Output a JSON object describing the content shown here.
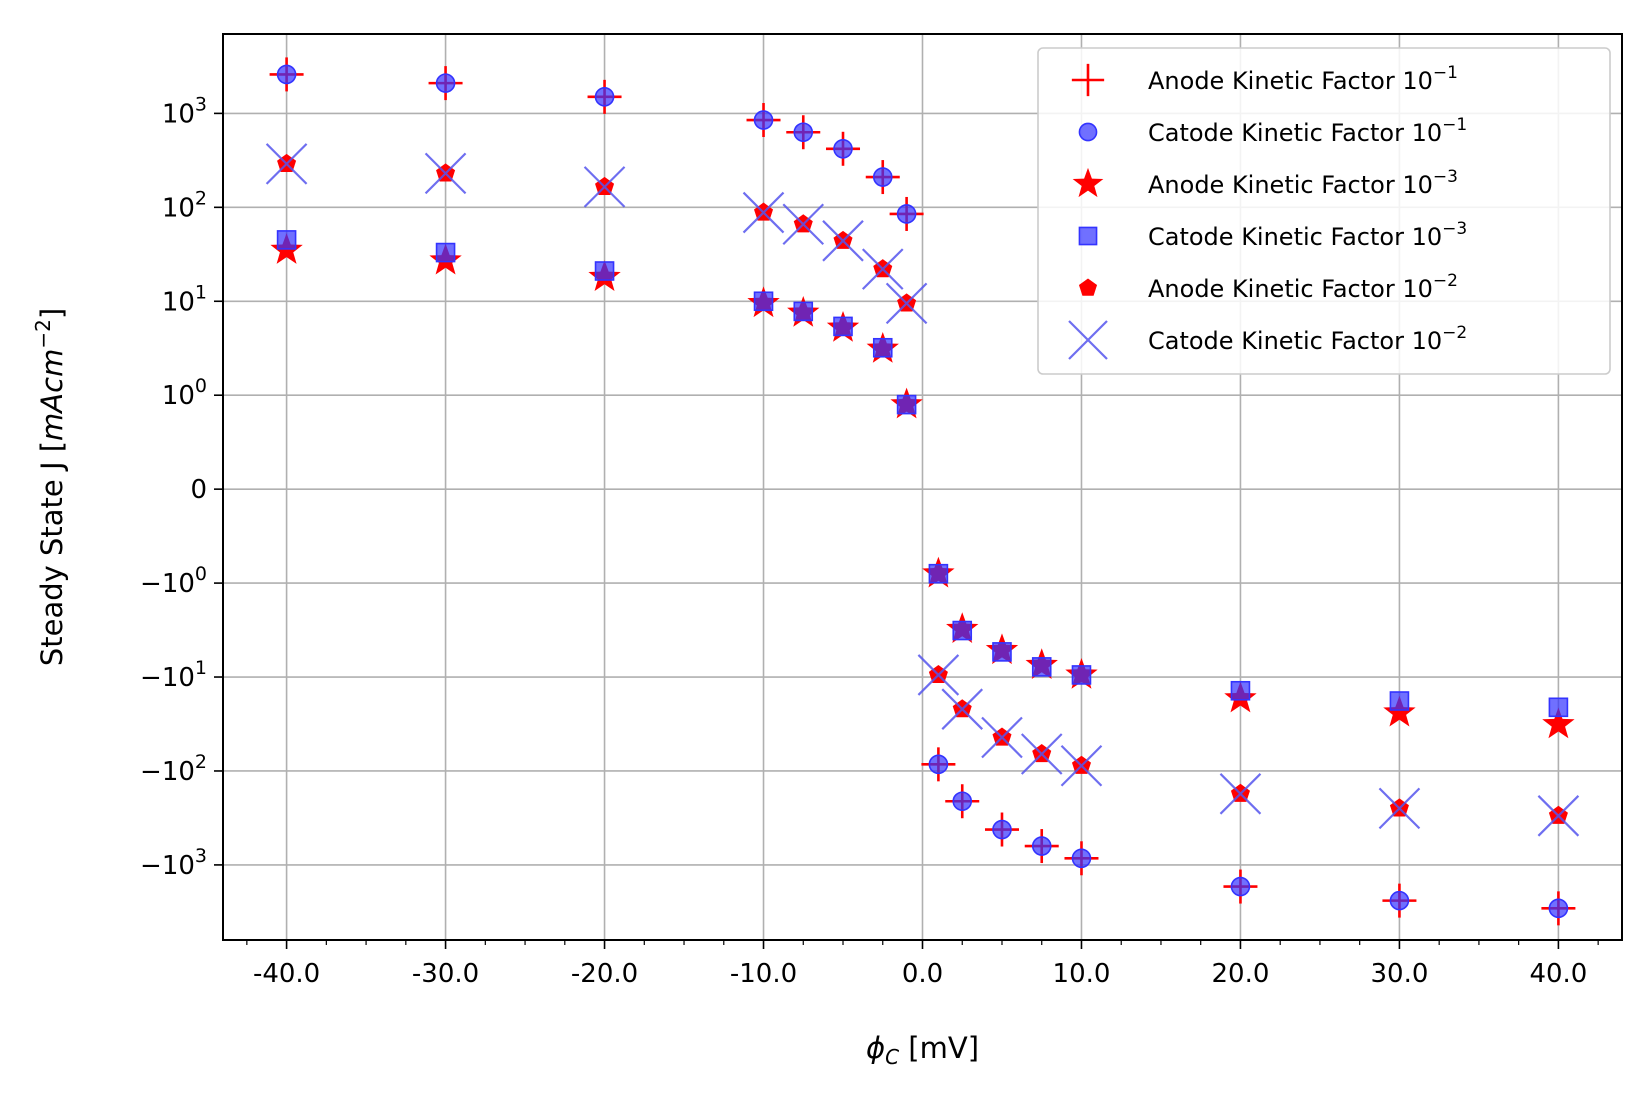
{
  "chart_data": {
    "type": "scatter",
    "title": "",
    "xlabel": {
      "sym": "ϕ",
      "sub": "C",
      "unit": " [mV]"
    },
    "ylabel": {
      "prefix": "Steady State J [",
      "italic": "mAcm",
      "sup": "−2",
      "suffix": "]"
    },
    "xlim": [
      -44,
      44
    ],
    "yscale": "symlog",
    "ylim": [
      -6300,
      7000
    ],
    "x_ticks": [
      {
        "value": -40,
        "label": "-40.0"
      },
      {
        "value": -30,
        "label": "-30.0"
      },
      {
        "value": -20,
        "label": "-20.0"
      },
      {
        "value": -10,
        "label": "-10.0"
      },
      {
        "value": 0,
        "label": "0.0"
      },
      {
        "value": 10,
        "label": "10.0"
      },
      {
        "value": 20,
        "label": "20.0"
      },
      {
        "value": 30,
        "label": "30.0"
      },
      {
        "value": 40,
        "label": "40.0"
      }
    ],
    "y_ticks": [
      {
        "value": 1000,
        "label_base": "10",
        "label_exp": "3",
        "sign": ""
      },
      {
        "value": 100,
        "label_base": "10",
        "label_exp": "2",
        "sign": ""
      },
      {
        "value": 10,
        "label_base": "10",
        "label_exp": "1",
        "sign": ""
      },
      {
        "value": 1,
        "label_base": "10",
        "label_exp": "0",
        "sign": ""
      },
      {
        "value": 0,
        "label_base": "0",
        "label_exp": "",
        "sign": ""
      },
      {
        "value": -1,
        "label_base": "10",
        "label_exp": "0",
        "sign": "−"
      },
      {
        "value": -10,
        "label_base": "10",
        "label_exp": "1",
        "sign": "−"
      },
      {
        "value": -100,
        "label_base": "10",
        "label_exp": "2",
        "sign": "−"
      },
      {
        "value": -1000,
        "label_base": "10",
        "label_exp": "3",
        "sign": "−"
      }
    ],
    "grid": true,
    "legend_position": "top-right",
    "series": [
      {
        "name": {
          "text": "Anode Kinetic Factor 10",
          "sup": "−1"
        },
        "marker": "plus",
        "color": "#ff0000",
        "x": [
          -40,
          -30,
          -20,
          -10,
          -7.5,
          -5,
          -2.5,
          -1,
          1,
          2.5,
          5,
          7.5,
          10,
          20,
          30,
          40
        ],
        "y": [
          2600,
          2100,
          1500,
          850,
          630,
          420,
          210,
          85,
          -85,
          -210,
          -420,
          -630,
          -850,
          -1700,
          -2400,
          -2900
        ]
      },
      {
        "name": {
          "text": "Catode Kinetic Factor 10",
          "sup": "−1"
        },
        "marker": "circle",
        "color": "#3333ff",
        "x": [
          -40,
          -30,
          -20,
          -10,
          -7.5,
          -5,
          -2.5,
          -1,
          1,
          2.5,
          5,
          7.5,
          10,
          20,
          30,
          40
        ],
        "y": [
          2600,
          2100,
          1500,
          850,
          630,
          420,
          210,
          85,
          -85,
          -210,
          -420,
          -630,
          -850,
          -1700,
          -2400,
          -2900
        ]
      },
      {
        "name": {
          "text": "Anode Kinetic Factor 10",
          "sup": "−3"
        },
        "marker": "star",
        "color": "#ff0000",
        "x": [
          -40,
          -30,
          -20,
          -10,
          -7.5,
          -5,
          -2.5,
          -1,
          1,
          2.5,
          5,
          7.5,
          10,
          20,
          30,
          40
        ],
        "y": [
          35,
          27,
          18,
          9.5,
          7.5,
          5.2,
          3.1,
          0.9,
          -0.9,
          -3.1,
          -5.2,
          -7.5,
          -9.5,
          -17,
          -24,
          -32
        ]
      },
      {
        "name": {
          "text": "Catode Kinetic Factor 10",
          "sup": "−3"
        },
        "marker": "square",
        "color": "#3333ff",
        "x": [
          -40,
          -30,
          -20,
          -10,
          -7.5,
          -5,
          -2.5,
          -1,
          1,
          2.5,
          5,
          7.5,
          10,
          20,
          30,
          40
        ],
        "y": [
          45,
          33,
          21,
          10,
          7.8,
          5.4,
          3.2,
          0.9,
          -0.9,
          -3.2,
          -5.4,
          -7.8,
          -9.5,
          -14,
          -18,
          -21
        ]
      },
      {
        "name": {
          "text": "Anode Kinetic Factor 10",
          "sup": "−2"
        },
        "marker": "pentagon",
        "color": "#ff0000",
        "x": [
          -40,
          -30,
          -20,
          -10,
          -7.5,
          -5,
          -2.5,
          -1,
          1,
          2.5,
          5,
          7.5,
          10,
          20,
          30,
          40
        ],
        "y": [
          290,
          230,
          165,
          88,
          66,
          44,
          22,
          9.5,
          -9.5,
          -22,
          -44,
          -66,
          -88,
          -175,
          -250,
          -300
        ]
      },
      {
        "name": {
          "text": "Catode Kinetic Factor 10",
          "sup": "−2"
        },
        "marker": "x",
        "color": "#5555ee",
        "x": [
          -40,
          -30,
          -20,
          -10,
          -7.5,
          -5,
          -2.5,
          -1,
          1,
          2.5,
          5,
          7.5,
          10,
          20,
          30,
          40
        ],
        "y": [
          290,
          230,
          165,
          88,
          66,
          44,
          22,
          9.5,
          -9.5,
          -22,
          -44,
          -66,
          -88,
          -175,
          -250,
          -300
        ]
      }
    ]
  }
}
